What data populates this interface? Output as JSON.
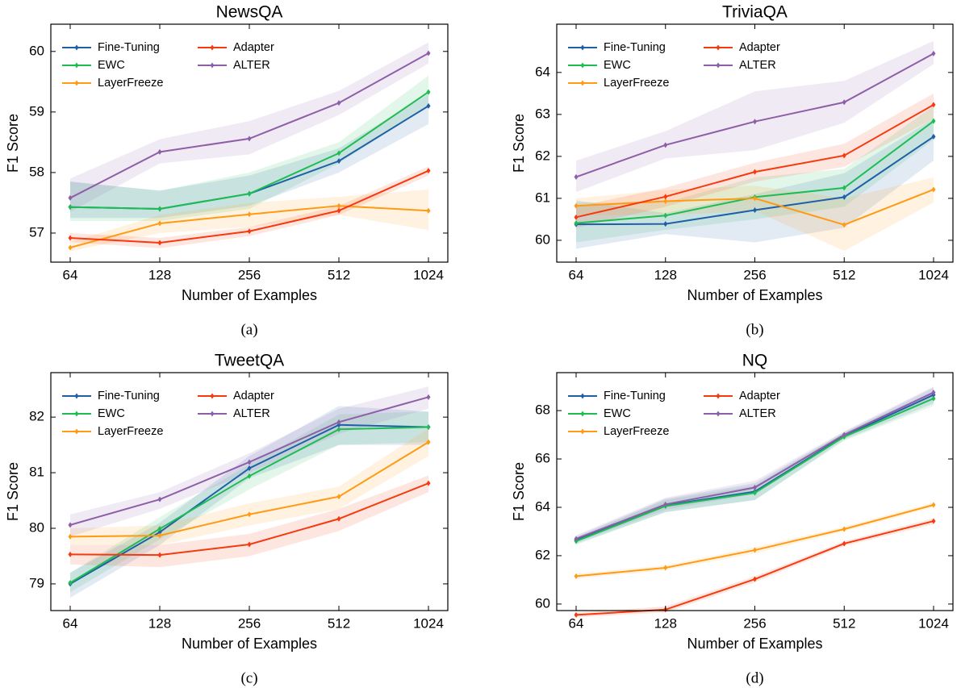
{
  "chart_data": [
    {
      "type": "line",
      "title": "NewsQA",
      "caption": "(a)",
      "x_label": "Number of Examples",
      "y_label": "F1 Score",
      "categories": [
        "64",
        "128",
        "256",
        "512",
        "1024"
      ],
      "ylim": [
        56.52,
        60.45
      ],
      "yticks": [
        57,
        58,
        59,
        60
      ],
      "legend": "upper left",
      "series": [
        {
          "name": "Fine-Tuning",
          "color": "#1f5fa8",
          "values": [
            57.43,
            57.4,
            57.65,
            58.19,
            59.1
          ],
          "lower": [
            57.25,
            57.25,
            57.45,
            58.0,
            58.8
          ],
          "upper": [
            57.85,
            57.7,
            57.95,
            58.4,
            59.3
          ]
        },
        {
          "name": "EWC",
          "color": "#1ebd52",
          "values": [
            57.43,
            57.4,
            57.65,
            58.32,
            59.33
          ],
          "lower": [
            57.2,
            57.2,
            57.4,
            58.15,
            59.1
          ],
          "upper": [
            57.85,
            57.7,
            58.0,
            58.5,
            59.6
          ]
        },
        {
          "name": "LayerFreeze",
          "color": "#ff9a12",
          "values": [
            56.76,
            57.16,
            57.31,
            57.45,
            57.37
          ],
          "lower": [
            56.7,
            57.0,
            57.1,
            57.3,
            57.05
          ],
          "upper": [
            56.85,
            57.3,
            57.5,
            57.6,
            57.72
          ]
        },
        {
          "name": "Adapter",
          "color": "#f53a0f",
          "values": [
            56.92,
            56.84,
            57.03,
            57.37,
            58.03
          ],
          "lower": [
            56.85,
            56.75,
            56.95,
            57.3,
            57.95
          ],
          "upper": [
            57.0,
            56.92,
            57.1,
            57.45,
            58.1
          ]
        },
        {
          "name": "ALTER",
          "color": "#8e5fa8",
          "values": [
            57.58,
            58.34,
            58.56,
            59.15,
            59.97
          ],
          "lower": [
            57.35,
            58.15,
            58.3,
            58.95,
            59.8
          ],
          "upper": [
            57.9,
            58.55,
            58.85,
            59.35,
            60.15
          ]
        }
      ]
    },
    {
      "type": "line",
      "title": "TriviaQA",
      "caption": "(b)",
      "x_label": "Number of Examples",
      "y_label": "F1 Score",
      "categories": [
        "64",
        "128",
        "256",
        "512",
        "1024"
      ],
      "ylim": [
        59.48,
        65.15
      ],
      "yticks": [
        60,
        61,
        62,
        63,
        64
      ],
      "legend": "upper left",
      "series": [
        {
          "name": "Fine-Tuning",
          "color": "#1f5fa8",
          "values": [
            60.38,
            60.39,
            60.72,
            61.03,
            62.47
          ],
          "lower": [
            59.8,
            60.15,
            59.95,
            60.3,
            61.9
          ],
          "upper": [
            60.95,
            60.65,
            61.1,
            61.6,
            62.9
          ]
        },
        {
          "name": "EWC",
          "color": "#1ebd52",
          "values": [
            60.41,
            60.59,
            61.03,
            61.25,
            62.84
          ],
          "lower": [
            59.95,
            60.25,
            60.5,
            60.8,
            62.4
          ],
          "upper": [
            60.9,
            60.9,
            61.5,
            61.7,
            63.2
          ]
        },
        {
          "name": "LayerFreeze",
          "color": "#ff9a12",
          "values": [
            60.82,
            60.93,
            61.0,
            60.37,
            61.21
          ],
          "lower": [
            60.6,
            60.6,
            60.7,
            59.75,
            60.9
          ],
          "upper": [
            61.0,
            61.2,
            61.3,
            61.0,
            61.5
          ]
        },
        {
          "name": "Adapter",
          "color": "#f53a0f",
          "values": [
            60.55,
            61.04,
            61.63,
            62.02,
            63.23
          ],
          "lower": [
            60.3,
            60.8,
            61.4,
            61.75,
            62.9
          ],
          "upper": [
            60.8,
            61.25,
            61.85,
            62.3,
            63.5
          ]
        },
        {
          "name": "ALTER",
          "color": "#8e5fa8",
          "values": [
            61.51,
            62.27,
            62.83,
            63.29,
            64.45
          ],
          "lower": [
            61.15,
            61.95,
            62.15,
            62.8,
            64.2
          ],
          "upper": [
            61.9,
            62.6,
            63.55,
            63.8,
            64.75
          ]
        }
      ]
    },
    {
      "type": "line",
      "title": "TweetQA",
      "caption": "(c)",
      "x_label": "Number of Examples",
      "y_label": "F1 Score",
      "categories": [
        "64",
        "128",
        "256",
        "512",
        "1024"
      ],
      "ylim": [
        78.52,
        82.8
      ],
      "yticks": [
        79,
        80,
        81,
        82
      ],
      "legend": "upper left",
      "series": [
        {
          "name": "Fine-Tuning",
          "color": "#1f5fa8",
          "values": [
            79.0,
            79.93,
            81.08,
            81.86,
            81.82
          ],
          "lower": [
            78.75,
            79.7,
            80.9,
            81.5,
            81.5
          ],
          "upper": [
            79.2,
            80.1,
            81.3,
            82.2,
            82.1
          ]
        },
        {
          "name": "EWC",
          "color": "#1ebd52",
          "values": [
            79.02,
            79.99,
            80.94,
            81.78,
            81.82
          ],
          "lower": [
            78.85,
            79.8,
            80.7,
            81.5,
            81.55
          ],
          "upper": [
            79.2,
            80.2,
            81.15,
            82.05,
            82.1
          ]
        },
        {
          "name": "LayerFreeze",
          "color": "#ff9a12",
          "values": [
            79.85,
            79.87,
            80.25,
            80.57,
            81.55
          ],
          "lower": [
            79.7,
            79.7,
            80.05,
            80.35,
            81.3
          ],
          "upper": [
            80.0,
            80.05,
            80.45,
            80.75,
            81.8
          ]
        },
        {
          "name": "Adapter",
          "color": "#f53a0f",
          "values": [
            79.53,
            79.52,
            79.71,
            80.17,
            80.81
          ],
          "lower": [
            79.35,
            79.3,
            79.5,
            79.95,
            80.65
          ],
          "upper": [
            79.7,
            79.7,
            79.9,
            80.35,
            80.95
          ]
        },
        {
          "name": "ALTER",
          "color": "#8e5fa8",
          "values": [
            80.06,
            80.52,
            81.19,
            81.91,
            82.36
          ],
          "lower": [
            79.85,
            80.35,
            81.0,
            81.7,
            82.15
          ],
          "upper": [
            80.25,
            80.65,
            81.35,
            82.15,
            82.55
          ]
        }
      ]
    },
    {
      "type": "line",
      "title": "NQ",
      "caption": "(d)",
      "x_label": "Number of Examples",
      "y_label": "F1 Score",
      "categories": [
        "64",
        "128",
        "256",
        "512",
        "1024"
      ],
      "ylim": [
        59.73,
        69.57
      ],
      "yticks": [
        60,
        62,
        64,
        66,
        68
      ],
      "legend": "upper left",
      "series": [
        {
          "name": "Fine-Tuning",
          "color": "#1f5fa8",
          "values": [
            62.65,
            64.08,
            64.65,
            66.95,
            68.65
          ],
          "lower": [
            62.5,
            63.8,
            64.3,
            66.8,
            68.3
          ],
          "upper": [
            62.8,
            64.35,
            65.0,
            67.1,
            68.95
          ]
        },
        {
          "name": "EWC",
          "color": "#1ebd52",
          "values": [
            62.6,
            64.05,
            64.6,
            66.92,
            68.5
          ],
          "lower": [
            62.45,
            63.8,
            64.3,
            66.75,
            68.2
          ],
          "upper": [
            62.75,
            64.3,
            64.9,
            67.1,
            68.8
          ]
        },
        {
          "name": "LayerFreeze",
          "color": "#ff9a12",
          "values": [
            61.15,
            61.5,
            62.23,
            63.1,
            64.1
          ],
          "lower": [
            61.05,
            61.4,
            62.1,
            63.0,
            64.0
          ],
          "upper": [
            61.25,
            61.6,
            62.35,
            63.2,
            64.2
          ]
        },
        {
          "name": "Adapter",
          "color": "#f53a0f",
          "values": [
            59.55,
            59.77,
            61.03,
            62.5,
            63.43
          ],
          "lower": [
            59.45,
            59.65,
            60.9,
            62.4,
            63.3
          ],
          "upper": [
            59.65,
            59.9,
            61.15,
            62.6,
            63.55
          ]
        },
        {
          "name": "ALTER",
          "color": "#8e5fa8",
          "values": [
            62.7,
            64.12,
            64.82,
            67.0,
            68.75
          ],
          "lower": [
            62.55,
            63.9,
            64.55,
            66.85,
            68.5
          ],
          "upper": [
            62.85,
            64.4,
            65.1,
            67.15,
            69.0
          ]
        }
      ]
    }
  ]
}
